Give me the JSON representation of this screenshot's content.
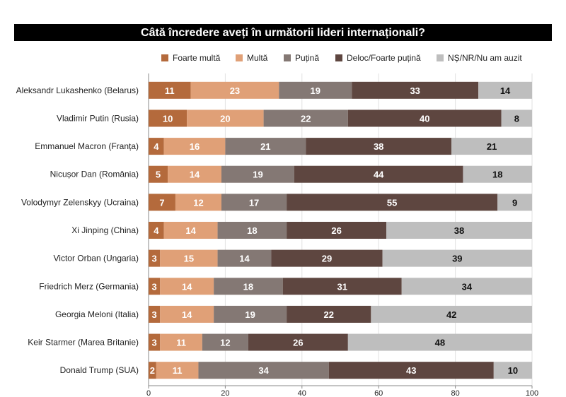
{
  "chart_data": {
    "type": "bar",
    "orientation": "horizontal",
    "stacked": true,
    "title": "Câtă încredere aveți în următorii lideri internaționali?",
    "xlabel": "",
    "ylabel": "",
    "xlim": [
      0,
      100
    ],
    "x_ticks": [
      "0",
      "20",
      "40",
      "60",
      "80",
      "100"
    ],
    "legend_position": "top",
    "categories": [
      "Aleksandr Lukashenko (Belarus)",
      "Vladimir Putin (Rusia)",
      "Emmanuel Macron (Franța)",
      "Nicușor Dan (România)",
      "Volodymyr Zelenskyy (Ucraina)",
      "Xi Jinping (China)",
      "Victor Orban (Ungaria)",
      "Friedrich Merz (Germania)",
      "Georgia Meloni (Italia)",
      "Keir Starmer (Marea Britanie)",
      "Donald Trump (SUA)"
    ],
    "series": [
      {
        "name": "Foarte multă",
        "color": "#B46A3C",
        "label_color": "#ffffff",
        "values": [
          11,
          10,
          4,
          5,
          7,
          4,
          3,
          3,
          3,
          3,
          2
        ]
      },
      {
        "name": "Multă",
        "color": "#E0A077",
        "label_color": "#ffffff",
        "values": [
          23,
          20,
          16,
          14,
          12,
          14,
          15,
          14,
          14,
          11,
          11
        ]
      },
      {
        "name": "Puțină",
        "color": "#847874",
        "label_color": "#ffffff",
        "values": [
          19,
          22,
          21,
          19,
          17,
          18,
          14,
          18,
          19,
          12,
          34
        ]
      },
      {
        "name": "Deloc/Foarte puțină",
        "color": "#5E4640",
        "label_color": "#ffffff",
        "values": [
          33,
          40,
          38,
          44,
          55,
          26,
          29,
          31,
          22,
          26,
          43
        ]
      },
      {
        "name": "NȘ/NR/Nu am auzit",
        "color": "#BEBEBE",
        "label_color": "#111111",
        "values": [
          14,
          8,
          21,
          18,
          9,
          38,
          39,
          34,
          42,
          48,
          10
        ]
      }
    ]
  }
}
